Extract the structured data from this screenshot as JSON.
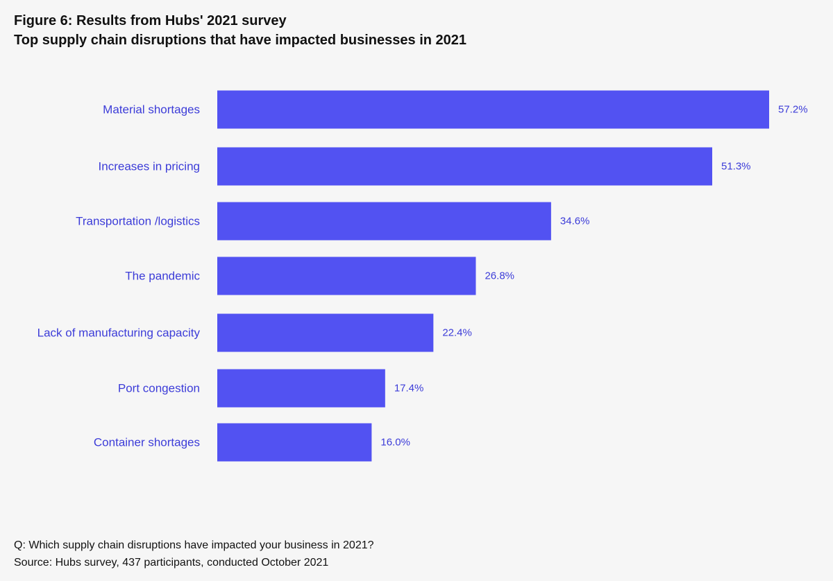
{
  "header": {
    "figure_title": "Figure 6: Results from Hubs' 2021 survey",
    "subtitle": "Top supply chain disruptions that have impacted businesses in 2021"
  },
  "footer": {
    "question": "Q: Which supply chain disruptions have impacted your business in 2021?",
    "source": "Source: Hubs survey, 437 participants, conducted October 2021"
  },
  "colors": {
    "bar": "#5252f2",
    "label": "#3c3cd8",
    "background": "#f6f6f6"
  },
  "chart_data": {
    "type": "bar",
    "orientation": "horizontal",
    "title": "Top supply chain disruptions that have impacted businesses in 2021",
    "categories": [
      "Material shortages",
      "Increases in pricing",
      "Transportation /logistics",
      "The pandemic",
      "Lack of manufacturing capacity",
      "Port congestion",
      "Container shortages"
    ],
    "values": [
      57.2,
      51.3,
      34.6,
      26.8,
      22.4,
      17.4,
      16.0
    ],
    "value_labels": [
      "57.2%",
      "51.3%",
      "34.6%",
      "26.8%",
      "22.4%",
      "17.4%",
      "16.0%"
    ],
    "xlabel": "",
    "ylabel": "",
    "unit": "%",
    "xlim": [
      0,
      57.2
    ],
    "grid": false,
    "legend": "none"
  }
}
